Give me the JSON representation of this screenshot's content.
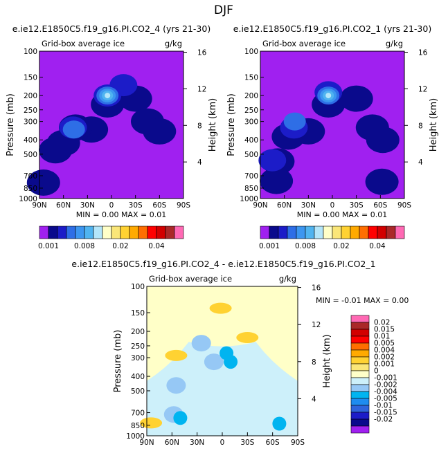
{
  "page_title": "DJF",
  "chart_data": [
    {
      "type": "heatmap",
      "title": "e.ie12.E1850C5.f19_g16.PI.CO2_4 (yrs 21-30)",
      "subtitle": "Grid-box average ice",
      "units": "g/kg",
      "ylabel": "Pressure (mb)",
      "y2label": "Height (km)",
      "x_ticks": [
        "90N",
        "60N",
        "30N",
        "0",
        "30S",
        "60S",
        "90S"
      ],
      "y_ticks": [
        "100",
        "150",
        "200",
        "250",
        "300",
        "400",
        "500",
        "700",
        "850",
        "1000"
      ],
      "y2_ticks": [
        "16",
        "12",
        "8",
        "4"
      ],
      "stats": {
        "min_label": "MIN =",
        "min": "0.00",
        "max_label": "MAX =",
        "max": "0.01"
      },
      "colorbar_labels": [
        "0.001",
        "0.008",
        "0.02",
        "0.04"
      ],
      "colors": [
        "#a020f0",
        "#0a0a8c",
        "#1c1cc8",
        "#2e6ee6",
        "#3c96f0",
        "#50b4f0",
        "#b4e6fa",
        "#ffffc8",
        "#fae678",
        "#ffd232",
        "#ffaa00",
        "#ff6e00",
        "#ff0000",
        "#d20000",
        "#aa2828",
        "#ff69b4"
      ],
      "features": [
        {
          "lat": 5,
          "p": 230,
          "level": 1
        },
        {
          "lat": -30,
          "p": 210,
          "level": 1
        },
        {
          "lat": -45,
          "p": 300,
          "level": 1
        },
        {
          "lat": -60,
          "p": 350,
          "level": 1
        },
        {
          "lat": 25,
          "p": 340,
          "level": 1
        },
        {
          "lat": 45,
          "p": 330,
          "level": 1
        },
        {
          "lat": 60,
          "p": 420,
          "level": 1
        },
        {
          "lat": 70,
          "p": 470,
          "level": 1
        },
        {
          "lat": 85,
          "p": 780,
          "level": 1
        },
        {
          "lat": 48,
          "p": 330,
          "level": 2
        },
        {
          "lat": 5,
          "p": 200,
          "level": 2
        },
        {
          "lat": -15,
          "p": 170,
          "level": 2
        },
        {
          "lat": 47,
          "p": 340,
          "level": 3
        },
        {
          "lat": 5,
          "p": 200,
          "level": 3
        },
        {
          "lat": 5,
          "p": 200,
          "level": 4
        },
        {
          "lat": 5,
          "p": 200,
          "level": 5
        },
        {
          "lat": 5,
          "p": 200,
          "level": 6
        }
      ]
    },
    {
      "type": "heatmap",
      "title": "e.ie12.E1850C5.f19_g16.PI.CO2_1 (yrs 21-30)",
      "subtitle": "Grid-box average ice",
      "units": "g/kg",
      "ylabel": "Pressure (mb)",
      "y2label": "Height (km)",
      "x_ticks": [
        "90N",
        "60N",
        "30N",
        "0",
        "30S",
        "60S",
        "90S"
      ],
      "y_ticks": [
        "100",
        "150",
        "200",
        "250",
        "300",
        "400",
        "500",
        "700",
        "850",
        "1000"
      ],
      "y2_ticks": [
        "16",
        "12",
        "8",
        "4"
      ],
      "stats": {
        "min_label": "MIN =",
        "min": "0.00",
        "max_label": "MAX =",
        "max": "0.01"
      },
      "colorbar_labels": [
        "0.001",
        "0.008",
        "0.02",
        "0.04"
      ],
      "colors": [
        "#a020f0",
        "#0a0a8c",
        "#1c1cc8",
        "#2e6ee6",
        "#3c96f0",
        "#50b4f0",
        "#b4e6fa",
        "#ffffc8",
        "#fae678",
        "#ffd232",
        "#ffaa00",
        "#ff6e00",
        "#ff0000",
        "#d20000",
        "#aa2828",
        "#ff69b4"
      ],
      "features": [
        {
          "lat": 5,
          "p": 230,
          "level": 1
        },
        {
          "lat": -30,
          "p": 210,
          "level": 1
        },
        {
          "lat": -50,
          "p": 330,
          "level": 1
        },
        {
          "lat": -63,
          "p": 400,
          "level": 1
        },
        {
          "lat": 30,
          "p": 350,
          "level": 1
        },
        {
          "lat": 55,
          "p": 380,
          "level": 1
        },
        {
          "lat": 68,
          "p": 560,
          "level": 1
        },
        {
          "lat": 70,
          "p": 760,
          "level": 1
        },
        {
          "lat": -62,
          "p": 770,
          "level": 1
        },
        {
          "lat": 48,
          "p": 330,
          "level": 2
        },
        {
          "lat": 5,
          "p": 190,
          "level": 2
        },
        {
          "lat": 75,
          "p": 550,
          "level": 2
        },
        {
          "lat": 47,
          "p": 300,
          "level": 3
        },
        {
          "lat": 5,
          "p": 200,
          "level": 3
        },
        {
          "lat": 5,
          "p": 200,
          "level": 4
        },
        {
          "lat": 5,
          "p": 200,
          "level": 5
        },
        {
          "lat": 5,
          "p": 200,
          "level": 6
        }
      ]
    },
    {
      "type": "heatmap",
      "title": "e.ie12.E1850C5.f19_g16.PI.CO2_4 - e.ie12.E1850C5.f19_g16.PI.CO2_1",
      "subtitle": "Grid-box average ice",
      "units": "g/kg",
      "ylabel": "Pressure (mb)",
      "y2label": "Height (km)",
      "x_ticks": [
        "90N",
        "60N",
        "30N",
        "0",
        "30S",
        "60S",
        "90S"
      ],
      "y_ticks": [
        "100",
        "150",
        "200",
        "250",
        "300",
        "400",
        "500",
        "700",
        "850",
        "1000"
      ],
      "y2_ticks": [
        "16",
        "12",
        "8",
        "4"
      ],
      "stats": {
        "min_label": "MIN =",
        "min": "-0.01",
        "max_label": "MAX =",
        "max": "0.00"
      },
      "colorbar_labels": [
        "0.02",
        "0.015",
        "0.01",
        "0.005",
        "0.004",
        "0.002",
        "0.001",
        "0",
        "-0.001",
        "-0.002",
        "-0.004",
        "-0.005",
        "-0.01",
        "-0.015",
        "-0.02"
      ],
      "colors": [
        "#ff69b4",
        "#aa2828",
        "#d20000",
        "#ff0000",
        "#ff6e00",
        "#ffaa00",
        "#ffd232",
        "#fae678",
        "#ffffc8",
        "#cdf0fa",
        "#96c8f5",
        "#00b4f0",
        "#1e8cf0",
        "#2e64dc",
        "#1c1cc8",
        "#0a0a8c",
        "#a020f0"
      ],
      "features": [
        {
          "lat": 25,
          "p": 240,
          "level": "neg"
        },
        {
          "lat": 10,
          "p": 320,
          "level": "neg"
        },
        {
          "lat": 55,
          "p": 460,
          "level": "neg"
        },
        {
          "lat": 58,
          "p": 720,
          "level": "neg"
        },
        {
          "lat": -5,
          "p": 280,
          "level": "neg2"
        },
        {
          "lat": -10,
          "p": 320,
          "level": "neg2"
        },
        {
          "lat": 50,
          "p": 760,
          "level": "neg2"
        },
        {
          "lat": -68,
          "p": 830,
          "level": "neg2"
        },
        {
          "lat": 2,
          "p": 140,
          "level": "pos"
        },
        {
          "lat": 55,
          "p": 290,
          "level": "pos"
        },
        {
          "lat": -30,
          "p": 220,
          "level": "pos"
        },
        {
          "lat": 85,
          "p": 820,
          "level": "pos"
        }
      ]
    }
  ]
}
